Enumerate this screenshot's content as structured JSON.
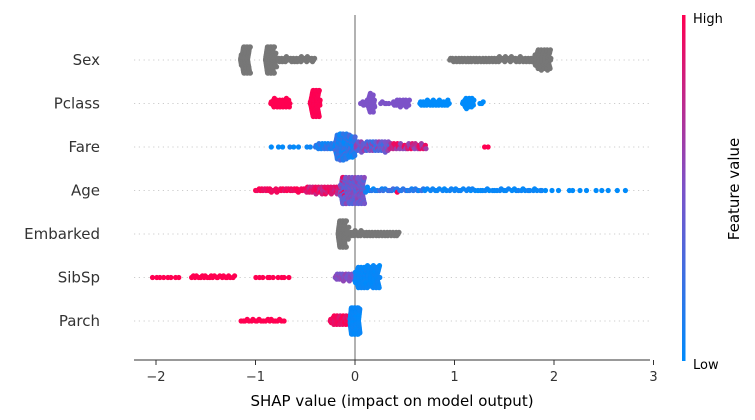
{
  "chart_data": {
    "type": "scatter",
    "title": "",
    "xlabel": "SHAP value (impact on model output)",
    "ylabel": "",
    "xlim": [
      -2.25,
      3.0
    ],
    "xticks": [
      -2,
      -1,
      0,
      1,
      2,
      3
    ],
    "xtick_labels": [
      "−2",
      "−1",
      "0",
      "1",
      "2",
      "3"
    ],
    "colorbar": {
      "label": "Feature value",
      "high_label": "High",
      "low_label": "Low",
      "low_color": "#008bfb",
      "mid_color": "#7c52c8",
      "high_color": "#ff0051",
      "missing_color": "#777777"
    },
    "features": [
      {
        "name": "Sex",
        "color_mode": "missing",
        "clusters": [
          {
            "x": [
              -1.15,
              -1.05
            ],
            "n": 70,
            "fv": [
              null,
              null
            ]
          },
          {
            "x": [
              -0.9,
              -0.8
            ],
            "n": 80,
            "fv": [
              null,
              null
            ]
          },
          {
            "x": [
              -0.8,
              -0.4
            ],
            "n": 40,
            "fv": [
              null,
              null
            ]
          },
          {
            "x": [
              0.95,
              1.2
            ],
            "n": 25,
            "fv": [
              null,
              null
            ]
          },
          {
            "x": [
              1.2,
              1.8
            ],
            "n": 60,
            "fv": [
              null,
              null
            ]
          },
          {
            "x": [
              1.8,
              1.97
            ],
            "n": 70,
            "fv": [
              null,
              null
            ]
          }
        ]
      },
      {
        "name": "Pclass",
        "color_mode": "value",
        "clusters": [
          {
            "x": [
              -0.85,
              -0.65
            ],
            "n": 35,
            "fv": [
              1.0,
              1.0
            ]
          },
          {
            "x": [
              -0.45,
              -0.35
            ],
            "n": 60,
            "fv": [
              0.98,
              1.0
            ]
          },
          {
            "x": [
              0.05,
              0.12
            ],
            "n": 6,
            "fv": [
              0.5,
              0.5
            ]
          },
          {
            "x": [
              0.12,
              0.2
            ],
            "n": 30,
            "fv": [
              0.5,
              0.5
            ]
          },
          {
            "x": [
              0.25,
              0.35
            ],
            "n": 5,
            "fv": [
              0.5,
              0.5
            ]
          },
          {
            "x": [
              0.38,
              0.55
            ],
            "n": 25,
            "fv": [
              0.5,
              0.5
            ]
          },
          {
            "x": [
              0.65,
              0.95
            ],
            "n": 35,
            "fv": [
              0.0,
              0.0
            ]
          },
          {
            "x": [
              1.08,
              1.2
            ],
            "n": 25,
            "fv": [
              0.0,
              0.0
            ]
          },
          {
            "x": [
              1.25,
              1.3
            ],
            "n": 3,
            "fv": [
              0.0,
              0.0
            ]
          }
        ]
      },
      {
        "name": "Fare",
        "color_mode": "value",
        "clusters": [
          {
            "x": [
              -0.85,
              -0.4
            ],
            "n": 8,
            "fv": [
              0.0,
              0.1
            ]
          },
          {
            "x": [
              -0.4,
              -0.1
            ],
            "n": 40,
            "fv": [
              0.0,
              0.25
            ]
          },
          {
            "x": [
              -0.2,
              0.0
            ],
            "n": 90,
            "fv": [
              0.0,
              0.3
            ]
          },
          {
            "x": [
              0.0,
              0.35
            ],
            "n": 70,
            "fv": [
              0.2,
              0.65
            ]
          },
          {
            "x": [
              0.35,
              0.72
            ],
            "n": 45,
            "fv": [
              0.55,
              1.0
            ]
          },
          {
            "x": [
              1.3,
              1.35
            ],
            "n": 2,
            "fv": [
              1.0,
              1.0
            ]
          }
        ]
      },
      {
        "name": "Age",
        "color_mode": "value",
        "clusters": [
          {
            "x": [
              -1.0,
              -0.5
            ],
            "n": 35,
            "fv": [
              0.9,
              1.0
            ]
          },
          {
            "x": [
              -0.5,
              -0.1
            ],
            "n": 60,
            "fv": [
              0.7,
              1.0
            ]
          },
          {
            "x": [
              -0.15,
              0.1
            ],
            "n": 140,
            "fv": [
              0.3,
              0.6
            ]
          },
          {
            "x": [
              0.1,
              0.7
            ],
            "n": 30,
            "fv": [
              0.0,
              0.3
            ]
          },
          {
            "x": [
              0.4,
              0.45
            ],
            "n": 1,
            "fv": [
              1.0,
              1.0
            ]
          },
          {
            "x": [
              0.7,
              1.9
            ],
            "n": 50,
            "fv": [
              0.0,
              0.08
            ]
          },
          {
            "x": [
              1.9,
              2.75
            ],
            "n": 12,
            "fv": [
              0.0,
              0.0
            ]
          }
        ]
      },
      {
        "name": "Embarked",
        "color_mode": "missing",
        "clusters": [
          {
            "x": [
              -0.17,
              -0.08
            ],
            "n": 80,
            "fv": [
              null,
              null
            ]
          },
          {
            "x": [
              -0.08,
              0.05
            ],
            "n": 15,
            "fv": [
              null,
              null
            ]
          },
          {
            "x": [
              0.05,
              0.45
            ],
            "n": 40,
            "fv": [
              null,
              null
            ]
          }
        ]
      },
      {
        "name": "SibSp",
        "color_mode": "value",
        "clusters": [
          {
            "x": [
              -2.05,
              -1.75
            ],
            "n": 8,
            "fv": [
              1.0,
              1.0
            ]
          },
          {
            "x": [
              -1.65,
              -1.2
            ],
            "n": 25,
            "fv": [
              1.0,
              1.0
            ]
          },
          {
            "x": [
              -1.0,
              -0.65
            ],
            "n": 10,
            "fv": [
              1.0,
              1.0
            ]
          },
          {
            "x": [
              -0.2,
              0.0
            ],
            "n": 30,
            "fv": [
              0.45,
              0.6
            ]
          },
          {
            "x": [
              0.0,
              0.25
            ],
            "n": 110,
            "fv": [
              0.0,
              0.05
            ]
          }
        ]
      },
      {
        "name": "Parch",
        "color_mode": "value",
        "clusters": [
          {
            "x": [
              -1.15,
              -0.7
            ],
            "n": 22,
            "fv": [
              1.0,
              1.0
            ]
          },
          {
            "x": [
              -0.25,
              -0.05
            ],
            "n": 40,
            "fv": [
              0.85,
              1.0
            ]
          },
          {
            "x": [
              -0.05,
              0.05
            ],
            "n": 100,
            "fv": [
              0.0,
              0.05
            ]
          }
        ]
      }
    ]
  }
}
